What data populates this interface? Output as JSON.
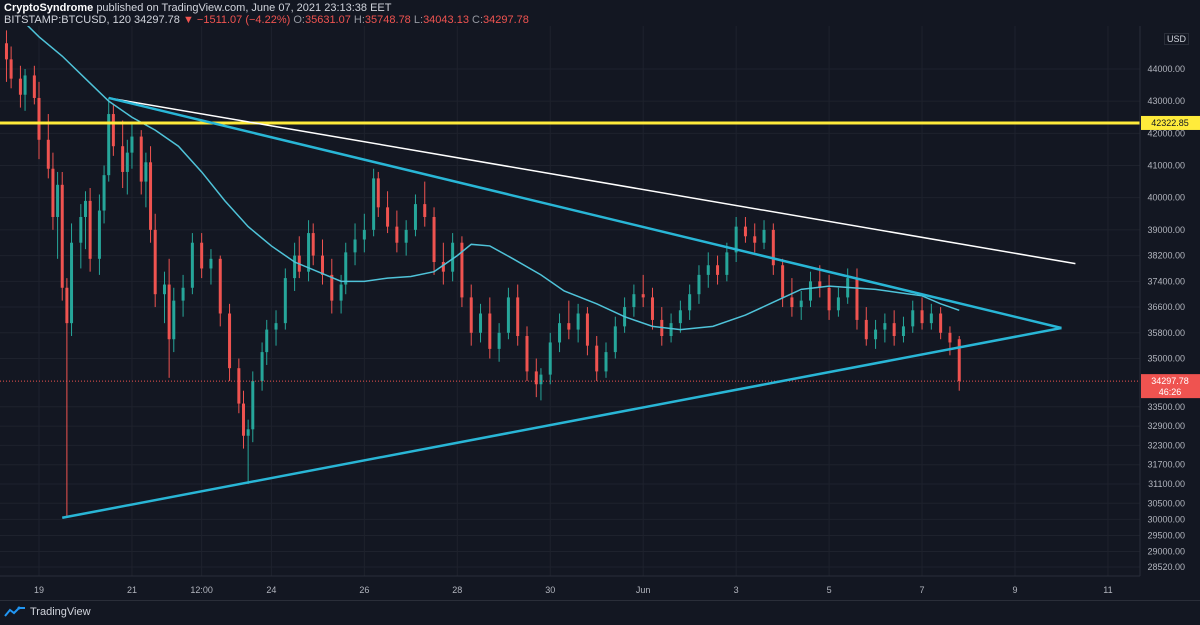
{
  "header": {
    "author": "CryptoSyndrome",
    "published": "published on TradingView.com, June 07, 2021 23:13:38 EET",
    "symbol": "BITSTAMP:BTCUSD, 120",
    "last": "34297.78",
    "arrow": "▼",
    "change": "−1511.07 (−4.22%)",
    "o_label": "O:",
    "o_value": "35631.07",
    "h_label": "H:",
    "h_value": "35748.78",
    "l_label": "L:",
    "l_value": "34043.13",
    "c_label": "C:",
    "c_value": "34297.78"
  },
  "currency": "USD",
  "footer": {
    "brand": "TradingView"
  },
  "colors": {
    "background": "#131722",
    "grid": "#1e222d",
    "up": "#26a69a",
    "down": "#ef5350",
    "ma": "#4fc3d9",
    "trendline": "#29b6d6",
    "resistance_line": "#ffffff",
    "horizontal_level": "#ffeb3b",
    "price_tag": "#ef5350"
  },
  "chart_data": {
    "type": "candlestick",
    "symbol": "BITSTAMP:BTCUSD",
    "interval": "120",
    "price_axis": {
      "range": [
        28000,
        45000
      ],
      "ticks": [
        44000,
        43000,
        42000,
        41000,
        40000,
        39000,
        38200,
        37400,
        36600,
        35800,
        35000,
        33500,
        32900,
        32300,
        31700,
        31100,
        30500,
        30000,
        29500,
        29000,
        28520
      ],
      "tick_labels": [
        "44000.00",
        "43000.00",
        "42000.00",
        "41000.00",
        "40000.00",
        "39000.00",
        "38200.00",
        "37400.00",
        "36600.00",
        "35800.00",
        "35000.00",
        "33500.00",
        "32900.00",
        "32300.00",
        "31700.00",
        "31100.00",
        "30500.00",
        "30000.00",
        "29500.00",
        "29000.00",
        "28520.00"
      ]
    },
    "time_axis": {
      "labels": [
        "19",
        "21",
        "12:00",
        "24",
        "26",
        "28",
        "30",
        "Jun",
        "3",
        "5",
        "7",
        "9",
        "11"
      ],
      "label_days": [
        19,
        21,
        22.5,
        24,
        26,
        28,
        30,
        32,
        34,
        36,
        38,
        40,
        42
      ],
      "range": [
        18.3,
        43.0
      ]
    },
    "levels": [
      {
        "price": 42322.85,
        "label": "42322.85"
      }
    ],
    "last_price": {
      "price": 34297.78,
      "label": "34297.78",
      "countdown": "46:26"
    },
    "trendlines": [
      {
        "name": "resistance-white",
        "from": [
          20.5,
          43100
        ],
        "to": [
          41.3,
          37950
        ]
      },
      {
        "name": "upper-triangle",
        "from": [
          20.5,
          43100
        ],
        "to": [
          41.0,
          35950
        ]
      },
      {
        "name": "lower-triangle",
        "from": [
          19.5,
          30050
        ],
        "to": [
          41.0,
          35950
        ]
      }
    ],
    "ma_path": [
      [
        18.3,
        46000
      ],
      [
        19.0,
        45000
      ],
      [
        19.5,
        44400
      ],
      [
        20.0,
        43700
      ],
      [
        20.5,
        43000
      ],
      [
        21.0,
        42500
      ],
      [
        21.5,
        42100
      ],
      [
        22.0,
        41600
      ],
      [
        22.5,
        40800
      ],
      [
        23.0,
        39900
      ],
      [
        23.5,
        39100
      ],
      [
        24.0,
        38500
      ],
      [
        24.5,
        38000
      ],
      [
        25.0,
        37700
      ],
      [
        25.5,
        37400
      ],
      [
        26.0,
        37400
      ],
      [
        26.5,
        37500
      ],
      [
        27.0,
        37550
      ],
      [
        27.5,
        37700
      ],
      [
        28.0,
        38200
      ],
      [
        28.3,
        38550
      ],
      [
        28.7,
        38500
      ],
      [
        29.2,
        38100
      ],
      [
        29.8,
        37600
      ],
      [
        30.3,
        37100
      ],
      [
        31.0,
        36700
      ],
      [
        31.6,
        36300
      ],
      [
        32.2,
        36000
      ],
      [
        32.8,
        35900
      ],
      [
        33.5,
        36000
      ],
      [
        34.2,
        36350
      ],
      [
        34.8,
        36750
      ],
      [
        35.4,
        37150
      ],
      [
        36.0,
        37250
      ],
      [
        36.5,
        37200
      ],
      [
        37.0,
        37150
      ],
      [
        37.5,
        37050
      ],
      [
        38.0,
        36950
      ],
      [
        38.4,
        36700
      ],
      [
        38.8,
        36500
      ]
    ],
    "candles": [
      [
        18.3,
        44800,
        45200,
        43600,
        44300
      ],
      [
        18.4,
        44300,
        44700,
        43400,
        43700
      ],
      [
        18.6,
        43700,
        44100,
        42800,
        43200
      ],
      [
        18.7,
        43200,
        44000,
        42700,
        43800
      ],
      [
        18.9,
        43800,
        44100,
        42900,
        43100
      ],
      [
        19.0,
        43100,
        43600,
        41200,
        41800
      ],
      [
        19.2,
        41800,
        42600,
        40600,
        40900
      ],
      [
        19.3,
        40900,
        41400,
        39000,
        39400
      ],
      [
        19.4,
        39400,
        40800,
        38100,
        40400
      ],
      [
        19.5,
        40400,
        40800,
        36800,
        37200
      ],
      [
        19.6,
        37200,
        37500,
        30050,
        36100
      ],
      [
        19.7,
        36100,
        39200,
        35700,
        38600
      ],
      [
        19.9,
        38600,
        39800,
        37800,
        39400
      ],
      [
        20.0,
        39400,
        40200,
        38400,
        39900
      ],
      [
        20.1,
        39900,
        40300,
        37700,
        38100
      ],
      [
        20.3,
        38100,
        40100,
        37600,
        39600
      ],
      [
        20.4,
        39600,
        41000,
        39200,
        40700
      ],
      [
        20.5,
        40700,
        43100,
        40500,
        42600
      ],
      [
        20.6,
        42600,
        42900,
        41300,
        41600
      ],
      [
        20.8,
        41600,
        42400,
        40300,
        40800
      ],
      [
        20.9,
        40800,
        41800,
        40100,
        41400
      ],
      [
        21.0,
        41400,
        42300,
        40900,
        41900
      ],
      [
        21.2,
        41900,
        42100,
        40100,
        40500
      ],
      [
        21.3,
        40500,
        41400,
        39700,
        41100
      ],
      [
        21.4,
        41100,
        41600,
        38600,
        39000
      ],
      [
        21.5,
        39000,
        39500,
        36600,
        37000
      ],
      [
        21.7,
        37000,
        37700,
        36100,
        37300
      ],
      [
        21.8,
        37300,
        38100,
        34400,
        35600
      ],
      [
        21.9,
        35600,
        37200,
        35200,
        36800
      ],
      [
        22.1,
        36800,
        37600,
        36300,
        37200
      ],
      [
        22.3,
        37200,
        38900,
        37000,
        38600
      ],
      [
        22.5,
        38600,
        38900,
        37500,
        37800
      ],
      [
        22.7,
        37800,
        38400,
        37300,
        38100
      ],
      [
        22.9,
        38100,
        38200,
        36000,
        36400
      ],
      [
        23.1,
        36400,
        36700,
        34300,
        34700
      ],
      [
        23.3,
        34700,
        35000,
        33300,
        33600
      ],
      [
        23.4,
        33600,
        34000,
        32200,
        32600
      ],
      [
        23.5,
        32600,
        33100,
        31100,
        32800
      ],
      [
        23.6,
        32800,
        34600,
        32400,
        34300
      ],
      [
        23.8,
        34300,
        35500,
        34000,
        35200
      ],
      [
        23.9,
        35200,
        36200,
        34800,
        35900
      ],
      [
        24.1,
        35900,
        36500,
        35400,
        36100
      ],
      [
        24.3,
        36100,
        37800,
        35900,
        37500
      ],
      [
        24.5,
        37500,
        38600,
        37100,
        38200
      ],
      [
        24.6,
        38200,
        38800,
        37500,
        37700
      ],
      [
        24.8,
        37700,
        39300,
        37400,
        38900
      ],
      [
        24.9,
        38900,
        39200,
        37900,
        38200
      ],
      [
        25.1,
        38200,
        38700,
        37300,
        37600
      ],
      [
        25.3,
        37600,
        38100,
        36400,
        36800
      ],
      [
        25.5,
        36800,
        37600,
        36400,
        37300
      ],
      [
        25.6,
        37300,
        38600,
        37000,
        38300
      ],
      [
        25.8,
        38300,
        39200,
        37900,
        38700
      ],
      [
        26.0,
        38700,
        39500,
        38300,
        39000
      ],
      [
        26.2,
        39000,
        40900,
        38800,
        40600
      ],
      [
        26.3,
        40600,
        40800,
        39400,
        39700
      ],
      [
        26.5,
        39700,
        40200,
        38900,
        39100
      ],
      [
        26.7,
        39100,
        39600,
        38300,
        38600
      ],
      [
        26.9,
        38600,
        39300,
        38200,
        39000
      ],
      [
        27.1,
        39000,
        40100,
        38800,
        39800
      ],
      [
        27.3,
        39800,
        40500,
        39100,
        39400
      ],
      [
        27.5,
        39400,
        39700,
        37600,
        38000
      ],
      [
        27.7,
        38000,
        38600,
        37300,
        37700
      ],
      [
        27.9,
        37700,
        38900,
        37400,
        38600
      ],
      [
        28.1,
        38600,
        38800,
        36600,
        36900
      ],
      [
        28.3,
        36900,
        37300,
        35400,
        35800
      ],
      [
        28.5,
        35800,
        36700,
        35500,
        36400
      ],
      [
        28.7,
        36400,
        36900,
        35000,
        35300
      ],
      [
        28.9,
        35300,
        36100,
        34900,
        35800
      ],
      [
        29.1,
        35800,
        37200,
        35600,
        36900
      ],
      [
        29.3,
        36900,
        37300,
        35400,
        35700
      ],
      [
        29.5,
        35700,
        36000,
        34300,
        34600
      ],
      [
        29.7,
        34600,
        35000,
        33800,
        34200
      ],
      [
        29.8,
        34200,
        34700,
        33700,
        34500
      ],
      [
        30.0,
        34500,
        35800,
        34200,
        35500
      ],
      [
        30.2,
        35500,
        36400,
        35200,
        36100
      ],
      [
        30.4,
        36100,
        36800,
        35600,
        35900
      ],
      [
        30.6,
        35900,
        36700,
        35500,
        36400
      ],
      [
        30.8,
        36400,
        36600,
        35100,
        35400
      ],
      [
        31.0,
        35400,
        35700,
        34300,
        34600
      ],
      [
        31.2,
        34600,
        35500,
        34400,
        35200
      ],
      [
        31.4,
        35200,
        36300,
        35000,
        36000
      ],
      [
        31.6,
        36000,
        36900,
        35800,
        36600
      ],
      [
        31.8,
        36600,
        37300,
        36300,
        37000
      ],
      [
        32.0,
        37000,
        37600,
        36600,
        36900
      ],
      [
        32.2,
        36900,
        37200,
        35900,
        36200
      ],
      [
        32.4,
        36200,
        36600,
        35400,
        35700
      ],
      [
        32.6,
        35700,
        36400,
        35500,
        36100
      ],
      [
        32.8,
        36100,
        36800,
        35800,
        36500
      ],
      [
        33.0,
        36500,
        37300,
        36200,
        37000
      ],
      [
        33.2,
        37000,
        37900,
        36700,
        37600
      ],
      [
        33.4,
        37600,
        38300,
        37200,
        37900
      ],
      [
        33.6,
        37900,
        38200,
        37300,
        37600
      ],
      [
        33.8,
        37600,
        38600,
        37400,
        38300
      ],
      [
        34.0,
        38300,
        39400,
        38000,
        39100
      ],
      [
        34.2,
        39100,
        39400,
        38600,
        38800
      ],
      [
        34.4,
        38800,
        39200,
        38300,
        38600
      ],
      [
        34.6,
        38600,
        39300,
        38400,
        39000
      ],
      [
        34.8,
        39000,
        39200,
        37600,
        37900
      ],
      [
        35.0,
        37900,
        38100,
        36600,
        36900
      ],
      [
        35.2,
        36900,
        37500,
        36300,
        36600
      ],
      [
        35.4,
        36600,
        37100,
        36200,
        36800
      ],
      [
        35.6,
        36800,
        37700,
        36600,
        37400
      ],
      [
        35.8,
        37400,
        37900,
        36900,
        37200
      ],
      [
        36.0,
        37200,
        37600,
        36200,
        36500
      ],
      [
        36.2,
        36500,
        37200,
        36300,
        36900
      ],
      [
        36.4,
        36900,
        37800,
        36700,
        37500
      ],
      [
        36.6,
        37500,
        37800,
        35900,
        36200
      ],
      [
        36.8,
        36200,
        36600,
        35400,
        35600
      ],
      [
        37.0,
        35600,
        36200,
        35300,
        35900
      ],
      [
        37.2,
        35900,
        36400,
        35500,
        36100
      ],
      [
        37.4,
        36100,
        36500,
        35400,
        35700
      ],
      [
        37.6,
        35700,
        36300,
        35500,
        36000
      ],
      [
        37.8,
        36000,
        36800,
        35800,
        36500
      ],
      [
        38.0,
        36500,
        36900,
        35900,
        36100
      ],
      [
        38.2,
        36100,
        36700,
        35900,
        36400
      ],
      [
        38.4,
        36400,
        36600,
        35600,
        35800
      ],
      [
        38.6,
        35800,
        36000,
        35100,
        35500
      ],
      [
        38.8,
        35600,
        35700,
        34000,
        34300
      ]
    ]
  }
}
